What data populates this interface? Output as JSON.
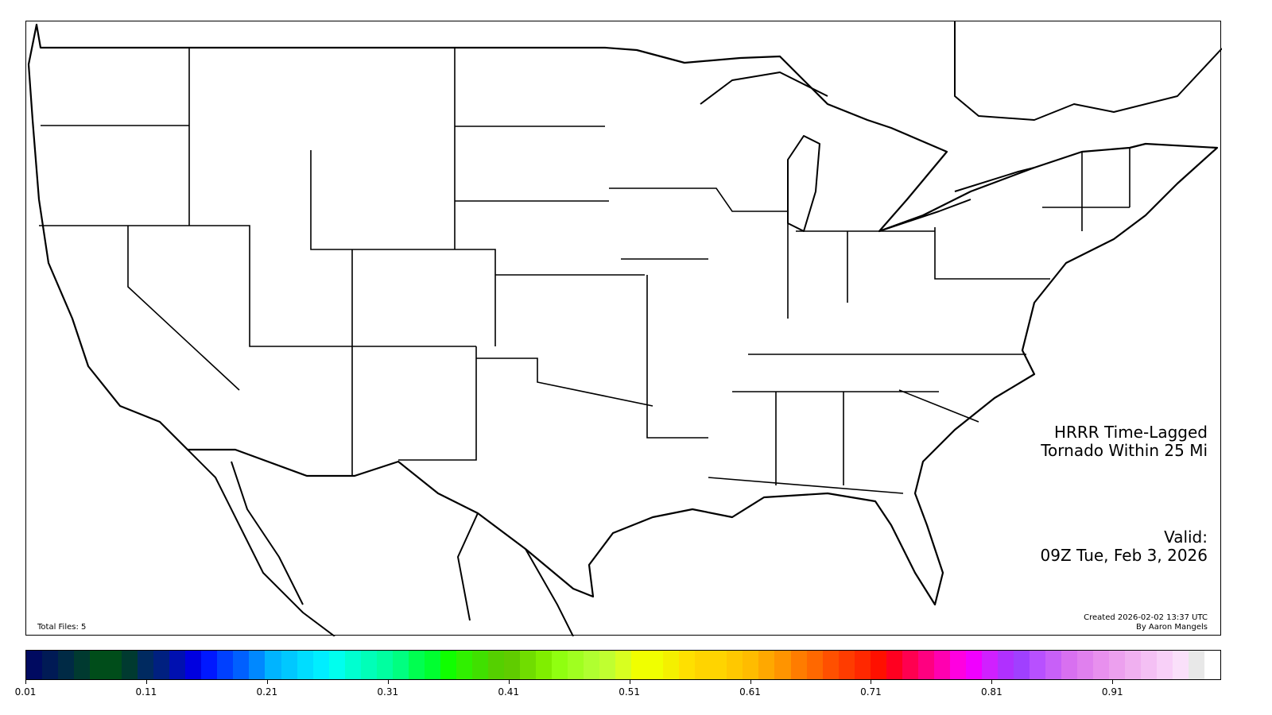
{
  "map": {
    "title_line1": "HRRR Time-Lagged",
    "title_line2": "Tornado Within 25 Mi",
    "valid_label": "Valid:",
    "valid_time": "09Z Tue, Feb 3, 2026",
    "total_files": "Total Files: 5",
    "created": "Created 2026-02-02 13:37 UTC",
    "author": "By Aaron Mangels",
    "region": "CONUS counties and states"
  },
  "colorbar": {
    "min": 0.01,
    "max": 1.0,
    "ticks": [
      "0.01",
      "0.11",
      "0.21",
      "0.31",
      "0.41",
      "0.51",
      "0.61",
      "0.71",
      "0.81",
      "0.91"
    ],
    "colors": [
      "#000a60",
      "#001a55",
      "#002a45",
      "#003a30",
      "#004d1a",
      "#004d1a",
      "#003a30",
      "#002a60",
      "#002080",
      "#0010b0",
      "#0000e0",
      "#0018ff",
      "#0040ff",
      "#0060ff",
      "#0088ff",
      "#00b4ff",
      "#00c8ff",
      "#00ddff",
      "#00eeff",
      "#00ffee",
      "#00ffd0",
      "#00ffb8",
      "#00ffa0",
      "#00ff80",
      "#00ff50",
      "#00ff30",
      "#10ff00",
      "#30f000",
      "#40e000",
      "#55d000",
      "#60cc00",
      "#70dd00",
      "#80ee00",
      "#90ff10",
      "#a0ff20",
      "#b0ff30",
      "#c0ff30",
      "#d8ff20",
      "#f0ff00",
      "#f0ff00",
      "#f4f000",
      "#ffe000",
      "#ffd400",
      "#ffd400",
      "#ffc800",
      "#ffbc00",
      "#ffa800",
      "#ff9400",
      "#ff7c00",
      "#ff6800",
      "#ff5000",
      "#ff3c00",
      "#ff2800",
      "#ff1000",
      "#ff0020",
      "#ff0050",
      "#ff0080",
      "#ff00b0",
      "#ff00e0",
      "#f000ff",
      "#d020ff",
      "#b030ff",
      "#a040ff",
      "#b850ff",
      "#c860f8",
      "#d870f0",
      "#e080ee",
      "#e890ee",
      "#eca0ee",
      "#f0b0f0",
      "#f4c0f4",
      "#f8d0f8",
      "#fae0fa",
      "#e8e8e8",
      "#ffffff"
    ]
  }
}
